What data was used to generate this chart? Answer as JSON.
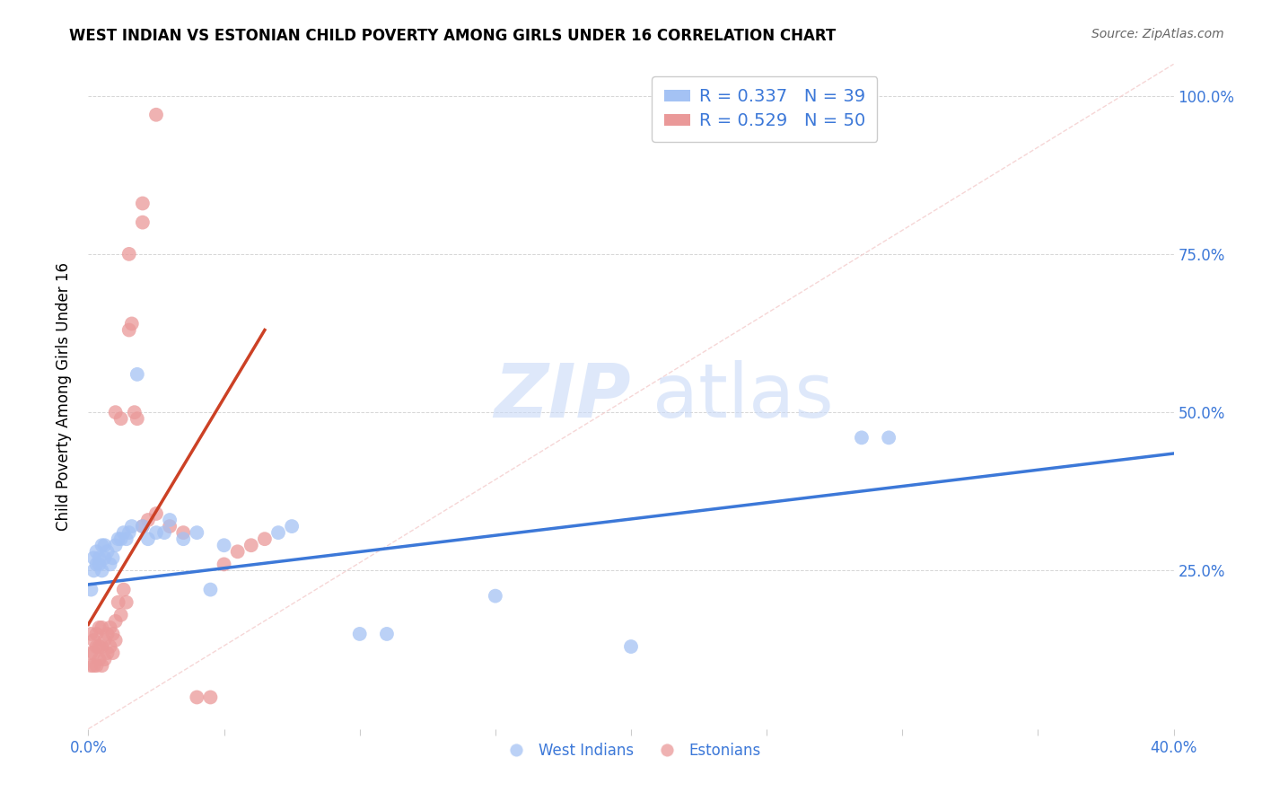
{
  "title": "WEST INDIAN VS ESTONIAN CHILD POVERTY AMONG GIRLS UNDER 16 CORRELATION CHART",
  "source": "Source: ZipAtlas.com",
  "ylabel": "Child Poverty Among Girls Under 16",
  "xlim": [
    0.0,
    0.4
  ],
  "ylim": [
    0.0,
    1.05
  ],
  "yticks": [
    0.0,
    0.25,
    0.5,
    0.75,
    1.0
  ],
  "ytick_labels": [
    "",
    "25.0%",
    "50.0%",
    "75.0%",
    "100.0%"
  ],
  "xticks": [
    0.0,
    0.05,
    0.1,
    0.15,
    0.2,
    0.25,
    0.3,
    0.35,
    0.4
  ],
  "xtick_labels": [
    "0.0%",
    "",
    "",
    "",
    "",
    "",
    "",
    "",
    "40.0%"
  ],
  "west_indians_R": 0.337,
  "west_indians_N": 39,
  "estonians_R": 0.529,
  "estonians_N": 50,
  "blue_color": "#a4c2f4",
  "pink_color": "#ea9999",
  "blue_line_color": "#3c78d8",
  "pink_line_color": "#cc4125",
  "legend_text_color": "#3c78d8",
  "background_color": "#ffffff",
  "grid_color": "#cccccc",
  "west_indians_x": [
    0.001,
    0.002,
    0.002,
    0.003,
    0.003,
    0.004,
    0.004,
    0.005,
    0.005,
    0.006,
    0.006,
    0.007,
    0.008,
    0.009,
    0.01,
    0.011,
    0.012,
    0.013,
    0.014,
    0.015,
    0.016,
    0.018,
    0.02,
    0.022,
    0.025,
    0.028,
    0.03,
    0.035,
    0.04,
    0.045,
    0.05,
    0.07,
    0.075,
    0.1,
    0.11,
    0.15,
    0.2,
    0.285,
    0.295
  ],
  "west_indians_y": [
    0.22,
    0.25,
    0.27,
    0.26,
    0.28,
    0.27,
    0.26,
    0.25,
    0.29,
    0.27,
    0.29,
    0.28,
    0.26,
    0.27,
    0.29,
    0.3,
    0.3,
    0.31,
    0.3,
    0.31,
    0.32,
    0.56,
    0.32,
    0.3,
    0.31,
    0.31,
    0.33,
    0.3,
    0.31,
    0.22,
    0.29,
    0.31,
    0.32,
    0.15,
    0.15,
    0.21,
    0.13,
    0.46,
    0.46
  ],
  "estonians_x": [
    0.001,
    0.001,
    0.001,
    0.002,
    0.002,
    0.002,
    0.003,
    0.003,
    0.003,
    0.004,
    0.004,
    0.004,
    0.005,
    0.005,
    0.005,
    0.006,
    0.006,
    0.007,
    0.007,
    0.008,
    0.008,
    0.009,
    0.009,
    0.01,
    0.01,
    0.011,
    0.012,
    0.013,
    0.014,
    0.015,
    0.016,
    0.017,
    0.018,
    0.02,
    0.022,
    0.025,
    0.03,
    0.035,
    0.04,
    0.045,
    0.05,
    0.055,
    0.06,
    0.065,
    0.015,
    0.02,
    0.02,
    0.025,
    0.01,
    0.012
  ],
  "estonians_y": [
    0.1,
    0.12,
    0.15,
    0.1,
    0.12,
    0.14,
    0.1,
    0.13,
    0.15,
    0.11,
    0.13,
    0.16,
    0.1,
    0.13,
    0.16,
    0.11,
    0.14,
    0.12,
    0.15,
    0.13,
    0.16,
    0.12,
    0.15,
    0.14,
    0.17,
    0.2,
    0.18,
    0.22,
    0.2,
    0.63,
    0.64,
    0.5,
    0.49,
    0.32,
    0.33,
    0.34,
    0.32,
    0.31,
    0.05,
    0.05,
    0.26,
    0.28,
    0.29,
    0.3,
    0.75,
    0.8,
    0.83,
    0.97,
    0.5,
    0.49
  ],
  "wi_trend_x": [
    0.0,
    0.4
  ],
  "wi_trend_y": [
    0.228,
    0.435
  ],
  "est_trend_x": [
    0.0,
    0.065
  ],
  "est_trend_y": [
    0.165,
    0.63
  ]
}
